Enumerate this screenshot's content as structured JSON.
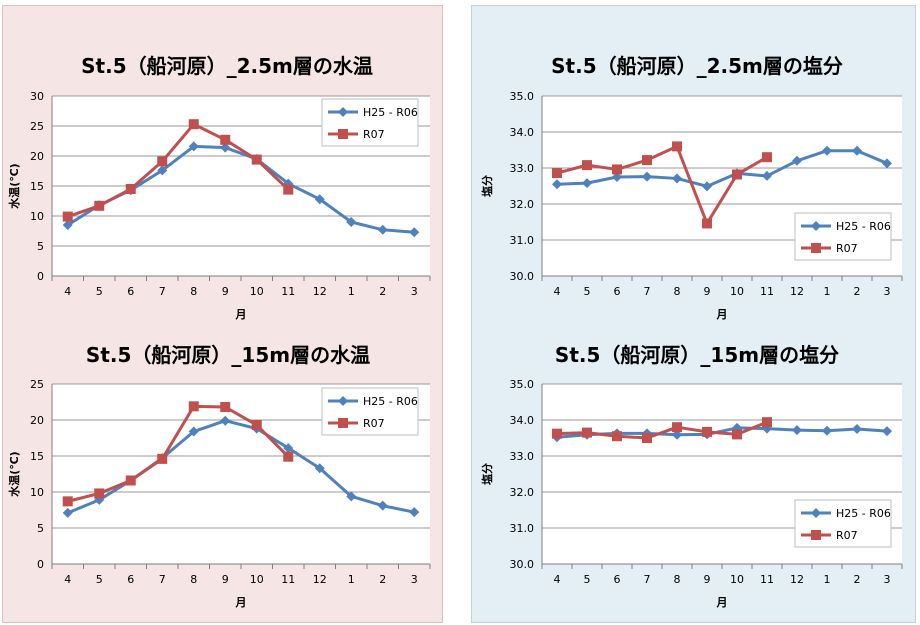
{
  "colors": {
    "series_hist": "#4f81bd",
    "series_cur": "#c0504d",
    "grid": "#9a9a9a",
    "plot_bg": "#ffffff"
  },
  "chart_data": [
    {
      "type": "line",
      "title": "St.5（船河原）_2.5m層の水温",
      "xlabel": "月",
      "ylabel": "水温(℃)",
      "categories": [
        "4",
        "5",
        "6",
        "7",
        "8",
        "9",
        "10",
        "11",
        "12",
        "1",
        "2",
        "3"
      ],
      "ylim": [
        0,
        30
      ],
      "yticks": [
        "0",
        "5",
        "10",
        "15",
        "20",
        "25",
        "30"
      ],
      "legend_position": "top-right",
      "series": [
        {
          "name": "H25 - R06",
          "values": [
            8.5,
            11.8,
            14.3,
            17.6,
            21.6,
            21.4,
            19.5,
            15.4,
            12.8,
            9.0,
            7.7,
            7.3
          ]
        },
        {
          "name": "R07",
          "values": [
            9.9,
            11.7,
            14.5,
            19.1,
            25.3,
            22.7,
            19.4,
            14.4,
            null,
            null,
            null,
            null
          ]
        }
      ]
    },
    {
      "type": "line",
      "title": "St.5（船河原）_2.5m層の塩分",
      "xlabel": "月",
      "ylabel": "塩分",
      "categories": [
        "4",
        "5",
        "6",
        "7",
        "8",
        "9",
        "10",
        "11",
        "12",
        "1",
        "2",
        "3"
      ],
      "ylim": [
        30.0,
        35.0
      ],
      "yticks": [
        "30.0",
        "31.0",
        "32.0",
        "33.0",
        "34.0",
        "35.0"
      ],
      "legend_position": "right",
      "series": [
        {
          "name": "H25 - R06",
          "values": [
            32.55,
            32.58,
            32.75,
            32.76,
            32.71,
            32.49,
            32.85,
            32.78,
            33.2,
            33.48,
            33.48,
            33.13
          ]
        },
        {
          "name": "R07",
          "values": [
            32.86,
            33.08,
            32.96,
            33.22,
            33.6,
            31.46,
            32.82,
            33.3,
            null,
            null,
            null,
            null
          ]
        }
      ]
    },
    {
      "type": "line",
      "title": "St.5（船河原）_15m層の水温",
      "xlabel": "月",
      "ylabel": "水温(℃)",
      "categories": [
        "4",
        "5",
        "6",
        "7",
        "8",
        "9",
        "10",
        "11",
        "12",
        "1",
        "2",
        "3"
      ],
      "ylim": [
        0,
        25
      ],
      "yticks": [
        "0",
        "5",
        "10",
        "15",
        "20",
        "25"
      ],
      "legend_position": "top-right",
      "series": [
        {
          "name": "H25 - R06",
          "values": [
            7.1,
            8.9,
            11.6,
            14.7,
            18.4,
            19.9,
            18.8,
            16.1,
            13.3,
            9.4,
            8.1,
            7.2
          ]
        },
        {
          "name": "R07",
          "values": [
            8.7,
            9.8,
            11.6,
            14.6,
            21.9,
            21.8,
            19.3,
            14.9,
            null,
            null,
            null,
            null
          ]
        }
      ]
    },
    {
      "type": "line",
      "title": "St.5（船河原）_15m層の塩分",
      "xlabel": "月",
      "ylabel": "塩分",
      "categories": [
        "4",
        "5",
        "6",
        "7",
        "8",
        "9",
        "10",
        "11",
        "12",
        "1",
        "2",
        "3"
      ],
      "ylim": [
        30.0,
        35.0
      ],
      "yticks": [
        "30.0",
        "31.0",
        "32.0",
        "33.0",
        "34.0",
        "35.0"
      ],
      "legend_position": "right",
      "series": [
        {
          "name": "H25 - R06",
          "values": [
            33.52,
            33.59,
            33.63,
            33.63,
            33.59,
            33.6,
            33.78,
            33.76,
            33.72,
            33.7,
            33.75,
            33.69
          ]
        },
        {
          "name": "R07",
          "values": [
            33.62,
            33.65,
            33.55,
            33.5,
            33.8,
            33.67,
            33.6,
            33.94,
            null,
            null,
            null,
            null
          ]
        }
      ]
    }
  ]
}
